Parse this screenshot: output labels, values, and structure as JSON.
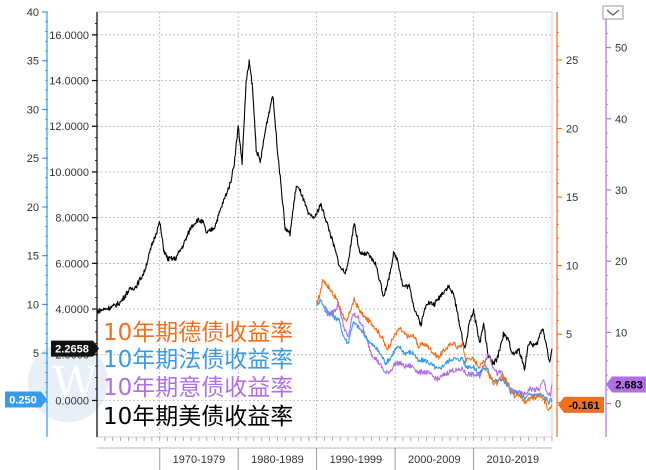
{
  "chart_data": {
    "type": "line",
    "x_range": [
      1962,
      2020
    ],
    "decade_labels": [
      "1970-1979",
      "1980-1989",
      "1990-1999",
      "2000-2009",
      "2010-2019"
    ],
    "axes": {
      "blue_left": {
        "color": "#3b9ae8",
        "ylim": [
          -3.6,
          40
        ],
        "ticks": [
          "40",
          "35",
          "30",
          "25",
          "20",
          "15",
          "10",
          "5",
          "0"
        ]
      },
      "black_inner": {
        "color": "#000000",
        "ylim": [
          -1.6,
          17.0
        ],
        "ticks": [
          "16.0000",
          "14.0000",
          "12.0000",
          "10.0000",
          "8.0000",
          "6.0000",
          "4.0000",
          "2.0000",
          "0.0000"
        ]
      },
      "orange_right": {
        "color": "#f07020",
        "ylim": [
          -2.5,
          28.5
        ],
        "ticks": [
          "25",
          "20",
          "15",
          "10",
          "5",
          "0"
        ]
      },
      "purple_right": {
        "color": "#b26ee6",
        "ylim": [
          -4.7,
          55
        ],
        "ticks": [
          "50",
          "40",
          "30",
          "20",
          "10",
          "0"
        ]
      }
    },
    "badges": {
      "black": "2.2658",
      "blue": "0.250",
      "orange": "-0.161",
      "purple": "2.683"
    },
    "series": [
      {
        "name": "10年期德债收益率",
        "color": "#f07020",
        "axis": "orange_right",
        "x": [
          1990,
          1990.4,
          1990.8,
          1991.3,
          1991.8,
          1992.5,
          1993.2,
          1993.8,
          1994.2,
          1994.8,
          1995.4,
          1996.0,
          1996.6,
          1997.2,
          1997.8,
          1998.4,
          1998.9,
          1999.4,
          2000.0,
          2000.6,
          2001.2,
          2001.8,
          2002.4,
          2003.0,
          2003.6,
          2004.2,
          2004.8,
          2005.5,
          2006.2,
          2006.8,
          2007.4,
          2008.0,
          2008.6,
          2009.0,
          2009.6,
          2010.2,
          2010.8,
          2011.3,
          2011.9,
          2012.5,
          2013.0,
          2013.6,
          2014.2,
          2014.8,
          2015.2,
          2015.6,
          2016.0,
          2016.6,
          2017.2,
          2017.8,
          2018.4,
          2019.0,
          2019.6,
          2020.0
        ],
        "y": [
          7.2,
          7.9,
          9.0,
          8.6,
          8.2,
          7.6,
          6.6,
          5.8,
          6.6,
          7.5,
          6.8,
          6.3,
          6.0,
          5.7,
          5.2,
          4.7,
          3.9,
          4.3,
          5.0,
          5.4,
          5.0,
          4.8,
          4.9,
          4.1,
          4.3,
          4.1,
          3.7,
          3.3,
          3.8,
          4.1,
          4.4,
          4.0,
          4.3,
          3.1,
          3.3,
          3.0,
          2.6,
          3.2,
          2.1,
          1.5,
          1.4,
          1.9,
          1.6,
          0.9,
          0.5,
          0.8,
          0.4,
          0.0,
          0.4,
          0.4,
          0.5,
          0.2,
          -0.6,
          -0.16
        ]
      },
      {
        "name": "10年期法债收益率",
        "color": "#3b9ae8",
        "axis": "blue_left",
        "x": [
          1990,
          1990.5,
          1991.0,
          1991.6,
          1992.2,
          1992.8,
          1993.4,
          1994.0,
          1994.6,
          1995.2,
          1995.8,
          1996.4,
          1997.0,
          1997.6,
          1998.2,
          1998.8,
          1999.4,
          2000.0,
          2000.6,
          2001.2,
          2001.8,
          2002.4,
          2003.0,
          2003.6,
          2004.2,
          2004.8,
          2005.5,
          2006.2,
          2006.8,
          2007.4,
          2008.0,
          2008.6,
          2009.0,
          2009.6,
          2010.2,
          2010.8,
          2011.3,
          2011.9,
          2012.5,
          2013.0,
          2013.6,
          2014.2,
          2014.8,
          2015.4,
          2016.0,
          2016.6,
          2017.2,
          2017.8,
          2018.4,
          2019.0,
          2019.6,
          2020.0
        ],
        "y": [
          10.0,
          10.5,
          9.7,
          9.2,
          8.7,
          8.5,
          6.8,
          6.0,
          8.1,
          7.8,
          7.2,
          6.5,
          5.9,
          5.5,
          4.8,
          4.0,
          4.5,
          5.4,
          5.6,
          5.0,
          5.1,
          5.0,
          4.1,
          4.3,
          4.1,
          3.7,
          3.3,
          3.8,
          4.2,
          4.5,
          4.3,
          4.5,
          3.6,
          3.7,
          3.4,
          2.9,
          3.5,
          3.2,
          2.2,
          2.1,
          2.4,
          1.8,
          0.9,
          1.0,
          0.7,
          0.3,
          0.8,
          0.7,
          0.8,
          0.5,
          0.0,
          0.25
        ]
      },
      {
        "name": "10年期意债收益率",
        "color": "#b26ee6",
        "axis": "purple_right",
        "x": [
          1991,
          1991.6,
          1992.2,
          1992.8,
          1993.4,
          1994.0,
          1994.6,
          1995.2,
          1995.8,
          1996.4,
          1997.0,
          1997.6,
          1998.2,
          1998.8,
          1999.4,
          2000.0,
          2000.6,
          2001.2,
          2001.8,
          2002.4,
          2003.0,
          2003.6,
          2004.2,
          2004.8,
          2005.5,
          2006.2,
          2006.8,
          2007.4,
          2008.0,
          2008.6,
          2009.0,
          2009.6,
          2010.2,
          2010.8,
          2011.5,
          2011.9,
          2012.4,
          2013.0,
          2013.6,
          2014.2,
          2014.8,
          2015.4,
          2016.0,
          2016.6,
          2017.2,
          2017.8,
          2018.4,
          2018.9,
          2019.4,
          2019.8,
          2020.0
        ],
        "y": [
          13.0,
          12.5,
          12.9,
          14.0,
          11.0,
          9.2,
          12.5,
          12.2,
          11.0,
          8.9,
          7.0,
          6.2,
          5.3,
          4.2,
          4.6,
          5.6,
          5.7,
          5.2,
          5.3,
          5.1,
          4.3,
          4.5,
          4.3,
          3.8,
          3.4,
          4.0,
          4.4,
          4.7,
          4.6,
          4.9,
          4.2,
          4.1,
          4.0,
          3.9,
          6.1,
          7.0,
          5.5,
          4.2,
          4.4,
          3.0,
          1.9,
          1.6,
          1.4,
          1.3,
          2.1,
          1.9,
          2.0,
          3.3,
          1.5,
          1.0,
          2.68
        ]
      },
      {
        "name": "10年期美债收益率",
        "color": "#000000",
        "axis": "black_inner",
        "x": [
          1962,
          1963,
          1964,
          1965,
          1966,
          1967,
          1968,
          1969,
          1970,
          1970.5,
          1971,
          1972,
          1973,
          1974,
          1974.8,
          1975.5,
          1976,
          1977,
          1978,
          1979,
          1979.5,
          1980.0,
          1980.5,
          1981.0,
          1981.4,
          1981.8,
          1982.3,
          1982.8,
          1983.5,
          1984.4,
          1985.0,
          1986.0,
          1986.6,
          1987.4,
          1988.0,
          1989.0,
          1989.8,
          1990.5,
          1991.2,
          1992.0,
          1993.0,
          1993.8,
          1994.8,
          1995.5,
          1996.5,
          1997.5,
          1998.5,
          1999.0,
          1999.8,
          2000.3,
          2001.0,
          2001.8,
          2002.5,
          2003.3,
          2004.0,
          2005.0,
          2006.0,
          2006.8,
          2007.5,
          2008.0,
          2008.9,
          2009.5,
          2010.0,
          2010.8,
          2011.3,
          2011.8,
          2012.5,
          2013.0,
          2013.8,
          2014.5,
          2015.0,
          2015.8,
          2016.5,
          2017.0,
          2018.0,
          2018.8,
          2019.2,
          2019.7,
          2020.0
        ],
        "y": [
          3.9,
          4.0,
          4.1,
          4.3,
          4.8,
          5.0,
          5.6,
          6.8,
          7.8,
          6.6,
          6.2,
          6.2,
          6.8,
          7.6,
          7.9,
          7.8,
          7.3,
          7.6,
          8.6,
          9.5,
          10.4,
          12.0,
          10.4,
          13.9,
          14.8,
          13.8,
          11.0,
          10.4,
          11.9,
          13.4,
          11.0,
          7.5,
          7.3,
          9.4,
          9.1,
          8.1,
          8.0,
          8.6,
          7.9,
          7.0,
          5.8,
          5.6,
          7.8,
          6.4,
          6.4,
          6.0,
          4.6,
          5.0,
          6.4,
          6.2,
          5.0,
          5.0,
          4.0,
          3.3,
          4.3,
          4.2,
          4.7,
          5.0,
          4.6,
          3.7,
          2.2,
          3.5,
          3.9,
          2.5,
          3.4,
          2.0,
          1.6,
          1.8,
          2.9,
          2.6,
          2.0,
          2.2,
          1.4,
          2.5,
          2.4,
          3.2,
          2.6,
          1.6,
          2.27
        ]
      }
    ]
  }
}
